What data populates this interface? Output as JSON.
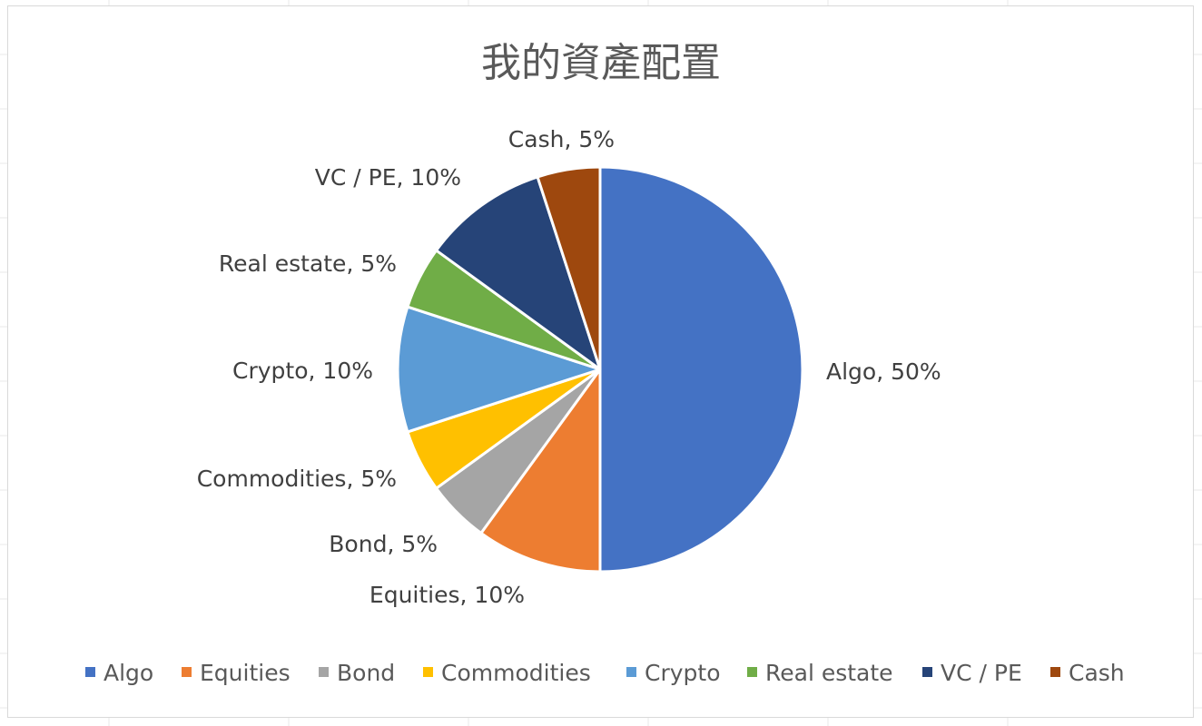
{
  "chart_data": {
    "type": "pie",
    "title": "我的資產配置",
    "legend_position": "bottom",
    "slices": [
      {
        "name": "Algo",
        "value": 50,
        "label": "Algo, 50%",
        "color": "#4472C4"
      },
      {
        "name": "Equities",
        "value": 10,
        "label": "Equities, 10%",
        "color": "#ED7D31"
      },
      {
        "name": "Bond",
        "value": 5,
        "label": "Bond, 5%",
        "color": "#A5A5A5"
      },
      {
        "name": "Commodities",
        "value": 5,
        "label": "Commodities, 5%",
        "color": "#FFC000"
      },
      {
        "name": "Crypto",
        "value": 10,
        "label": "Crypto, 10%",
        "color": "#5B9BD5"
      },
      {
        "name": "Real estate",
        "value": 5,
        "label": "Real estate, 5%",
        "color": "#70AD47"
      },
      {
        "name": "VC / PE",
        "value": 10,
        "label": "VC / PE, 10%",
        "color": "#264478"
      },
      {
        "name": "Cash",
        "value": 5,
        "label": "Cash, 5%",
        "color": "#9E480E"
      }
    ]
  }
}
